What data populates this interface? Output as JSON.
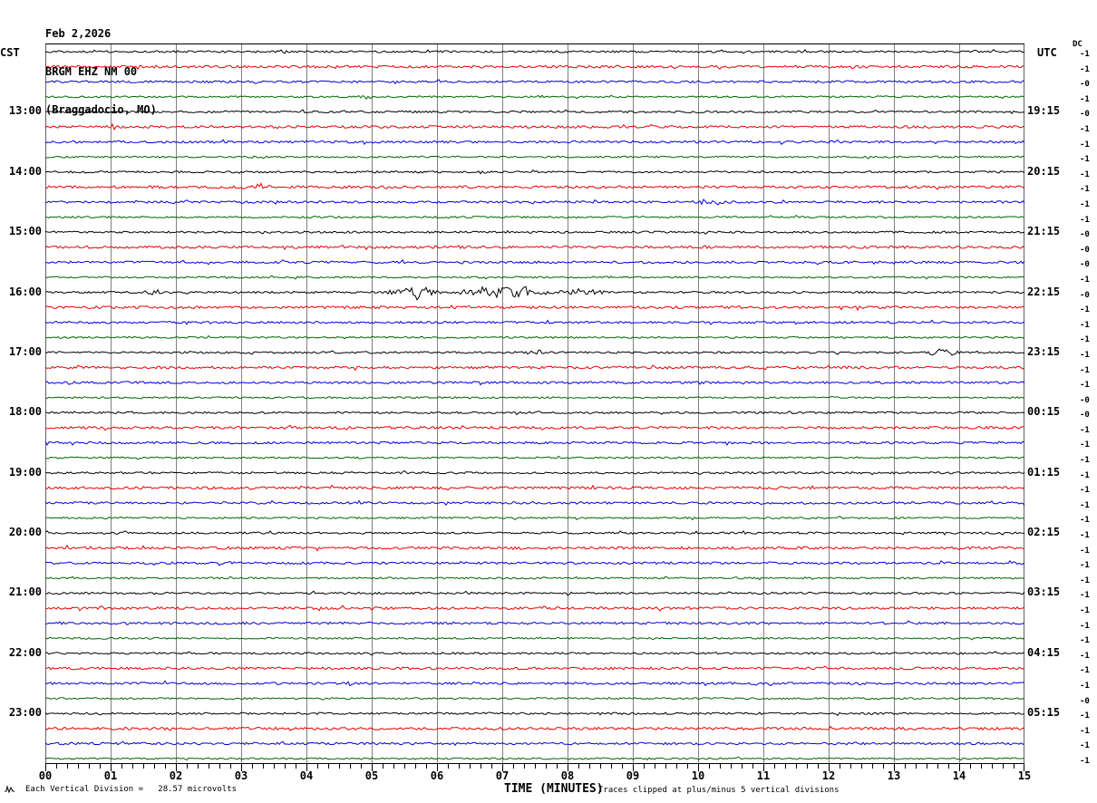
{
  "header": {
    "date": "Feb 2,2026",
    "station_line": "BRGM EHZ NM 00",
    "location_line": "(Braggadocio, MO)"
  },
  "axes": {
    "left_timezone": "CST",
    "right_timezone": "UTC",
    "dc_column_header": "DC",
    "x_title": "TIME (MINUTES)",
    "x_tick_labels": [
      "00",
      "01",
      "02",
      "03",
      "04",
      "05",
      "06",
      "07",
      "08",
      "09",
      "10",
      "11",
      "12",
      "13",
      "14",
      "15"
    ]
  },
  "footer": {
    "scale_note": "Each Vertical Division =   28.57 microvolts",
    "clip_note": "Traces clipped at plus/minus 5 vertical divisions"
  },
  "colors": {
    "black": "#000000",
    "red": "#e60000",
    "blue": "#0000dd",
    "green": "#006600",
    "grid": "#808080",
    "border": "#606060",
    "axis": "#000000"
  },
  "chart_data": {
    "type": "line",
    "variant": "helicorder-seismogram",
    "title": "BRGM EHZ NM 00 (Braggadocio, MO) — Feb 2,2026",
    "xlabel": "TIME (MINUTES)",
    "x_range_minutes": [
      0,
      15
    ],
    "minutes_per_row": 15,
    "left_axis_timezone": "CST",
    "right_axis_timezone": "UTC",
    "trace_color_cycle": [
      "black",
      "red",
      "blue",
      "green"
    ],
    "rows": [
      {
        "color": "black",
        "left_label": "",
        "right_label": "",
        "dc": "-1"
      },
      {
        "color": "red",
        "left_label": "",
        "right_label": "",
        "dc": "-1"
      },
      {
        "color": "blue",
        "left_label": "",
        "right_label": "",
        "dc": "-0"
      },
      {
        "color": "green",
        "left_label": "",
        "right_label": "",
        "dc": "-1"
      },
      {
        "color": "black",
        "left_label": "13:00",
        "right_label": "19:15",
        "dc": "-0"
      },
      {
        "color": "red",
        "left_label": "",
        "right_label": "",
        "dc": "-1"
      },
      {
        "color": "blue",
        "left_label": "",
        "right_label": "",
        "dc": "-1"
      },
      {
        "color": "green",
        "left_label": "",
        "right_label": "",
        "dc": "-1"
      },
      {
        "color": "black",
        "left_label": "14:00",
        "right_label": "20:15",
        "dc": "-1"
      },
      {
        "color": "red",
        "left_label": "",
        "right_label": "",
        "dc": "-1"
      },
      {
        "color": "blue",
        "left_label": "",
        "right_label": "",
        "dc": "-1"
      },
      {
        "color": "green",
        "left_label": "",
        "right_label": "",
        "dc": "-1"
      },
      {
        "color": "black",
        "left_label": "15:00",
        "right_label": "21:15",
        "dc": "-0"
      },
      {
        "color": "red",
        "left_label": "",
        "right_label": "",
        "dc": "-0"
      },
      {
        "color": "blue",
        "left_label": "",
        "right_label": "",
        "dc": "-0"
      },
      {
        "color": "green",
        "left_label": "",
        "right_label": "",
        "dc": "-1"
      },
      {
        "color": "black",
        "left_label": "16:00",
        "right_label": "22:15",
        "dc": "-0"
      },
      {
        "color": "red",
        "left_label": "",
        "right_label": "",
        "dc": "-1"
      },
      {
        "color": "blue",
        "left_label": "",
        "right_label": "",
        "dc": "-1"
      },
      {
        "color": "green",
        "left_label": "",
        "right_label": "",
        "dc": "-1"
      },
      {
        "color": "black",
        "left_label": "17:00",
        "right_label": "23:15",
        "dc": "-1"
      },
      {
        "color": "red",
        "left_label": "",
        "right_label": "",
        "dc": "-1"
      },
      {
        "color": "blue",
        "left_label": "",
        "right_label": "",
        "dc": "-1"
      },
      {
        "color": "green",
        "left_label": "",
        "right_label": "",
        "dc": "-0"
      },
      {
        "color": "black",
        "left_label": "18:00",
        "right_label": "00:15",
        "dc": "-0"
      },
      {
        "color": "red",
        "left_label": "",
        "right_label": "",
        "dc": "-1"
      },
      {
        "color": "blue",
        "left_label": "",
        "right_label": "",
        "dc": "-1"
      },
      {
        "color": "green",
        "left_label": "",
        "right_label": "",
        "dc": "-1"
      },
      {
        "color": "black",
        "left_label": "19:00",
        "right_label": "01:15",
        "dc": "-1"
      },
      {
        "color": "red",
        "left_label": "",
        "right_label": "",
        "dc": "-1"
      },
      {
        "color": "blue",
        "left_label": "",
        "right_label": "",
        "dc": "-1"
      },
      {
        "color": "green",
        "left_label": "",
        "right_label": "",
        "dc": "-1"
      },
      {
        "color": "black",
        "left_label": "20:00",
        "right_label": "02:15",
        "dc": "-1"
      },
      {
        "color": "red",
        "left_label": "",
        "right_label": "",
        "dc": "-1"
      },
      {
        "color": "blue",
        "left_label": "",
        "right_label": "",
        "dc": "-1"
      },
      {
        "color": "green",
        "left_label": "",
        "right_label": "",
        "dc": "-1"
      },
      {
        "color": "black",
        "left_label": "21:00",
        "right_label": "03:15",
        "dc": "-1"
      },
      {
        "color": "red",
        "left_label": "",
        "right_label": "",
        "dc": "-1"
      },
      {
        "color": "blue",
        "left_label": "",
        "right_label": "",
        "dc": "-1"
      },
      {
        "color": "green",
        "left_label": "",
        "right_label": "",
        "dc": "-1"
      },
      {
        "color": "black",
        "left_label": "22:00",
        "right_label": "04:15",
        "dc": "-1"
      },
      {
        "color": "red",
        "left_label": "",
        "right_label": "",
        "dc": "-1"
      },
      {
        "color": "blue",
        "left_label": "",
        "right_label": "",
        "dc": "-1"
      },
      {
        "color": "green",
        "left_label": "",
        "right_label": "",
        "dc": "-0"
      },
      {
        "color": "black",
        "left_label": "23:00",
        "right_label": "05:15",
        "dc": "-1"
      },
      {
        "color": "red",
        "left_label": "",
        "right_label": "",
        "dc": "-1"
      },
      {
        "color": "blue",
        "left_label": "",
        "right_label": "",
        "dc": "-1"
      },
      {
        "color": "green",
        "left_label": "",
        "right_label": "",
        "dc": "-1"
      }
    ],
    "events": [
      {
        "row": 4,
        "start_min": 4.8,
        "end_min": 5.05,
        "amplitude": 2.5
      },
      {
        "row": 10,
        "start_min": 2.95,
        "end_min": 3.5,
        "amplitude": 3
      },
      {
        "row": 11,
        "start_min": 9.9,
        "end_min": 10.5,
        "amplitude": 2.5
      },
      {
        "row": 17,
        "start_min": 1.5,
        "end_min": 1.8,
        "amplitude": 3
      },
      {
        "row": 17,
        "start_min": 5.2,
        "end_min": 6.1,
        "amplitude": 5
      },
      {
        "row": 17,
        "start_min": 5.65,
        "end_min": 5.8,
        "amplitude": 9
      },
      {
        "row": 17,
        "start_min": 6.3,
        "end_min": 7.75,
        "amplitude": 7
      },
      {
        "row": 17,
        "start_min": 7.75,
        "end_min": 8.6,
        "amplitude": 3
      },
      {
        "row": 21,
        "start_min": 7.35,
        "end_min": 7.65,
        "amplitude": 3
      },
      {
        "row": 21,
        "start_min": 13.5,
        "end_min": 14.0,
        "amplitude": 4.5
      }
    ],
    "legend_position": "none",
    "grid": "vertical-minute-lines"
  }
}
